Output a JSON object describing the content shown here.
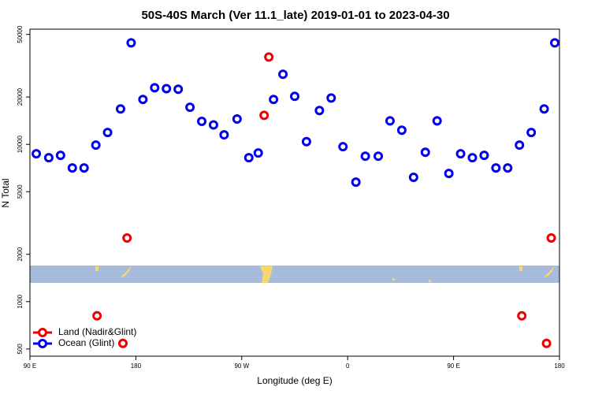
{
  "chart_data": {
    "type": "scatter",
    "title": "50S-40S March (Ver 11.1_late)   2019-01-01 to 2023-04-30",
    "x_label": "Longitude (deg E)",
    "y_label": "N Total",
    "log_y": true,
    "legend": "lower left",
    "xlim": [
      90,
      540
    ],
    "ylim": [
      450,
      54000
    ],
    "xticks": [
      {
        "value": 90,
        "label": "90 E"
      },
      {
        "value": 180,
        "label": "180"
      },
      {
        "value": 270,
        "label": "90 W"
      },
      {
        "value": 360,
        "label": "0"
      },
      {
        "value": 450,
        "label": "90 E"
      },
      {
        "value": 540,
        "label": "180"
      }
    ],
    "yticks": [
      500,
      1000,
      2000,
      5000,
      10000,
      20000,
      50000
    ],
    "series": [
      {
        "name": "Land (Nadir&Glint)",
        "color": "#ee0000",
        "x": [
          147,
          169,
          172.5,
          289,
          293,
          508,
          529,
          533
        ],
        "values": [
          813,
          543,
          2540,
          15300,
          35900,
          813,
          543,
          2540
        ]
      },
      {
        "name": "Ocean (Glint)",
        "color": "#0000ee",
        "x": [
          95.4,
          106,
          116,
          126,
          136,
          146,
          156,
          167,
          176,
          186,
          196,
          206,
          216,
          226,
          236,
          246,
          255,
          266,
          276,
          284,
          297,
          305,
          315,
          325,
          336,
          346,
          356,
          367,
          375,
          386,
          396,
          406,
          416,
          426,
          436,
          446,
          456,
          466,
          476,
          486,
          496,
          506,
          516,
          527,
          536
        ],
        "values": [
          8710,
          8220,
          8510,
          7080,
          7080,
          9890,
          11900,
          16800,
          44200,
          19300,
          22900,
          22600,
          22400,
          17200,
          14000,
          13300,
          11500,
          14500,
          8220,
          8810,
          19300,
          27900,
          20200,
          10400,
          16400,
          19700,
          9660,
          5750,
          8410,
          8410,
          14100,
          12300,
          6170,
          8910,
          14100,
          6530,
          8710,
          8220,
          8510,
          7080,
          7080,
          9890,
          11900,
          16800,
          44200
        ]
      }
    ]
  }
}
